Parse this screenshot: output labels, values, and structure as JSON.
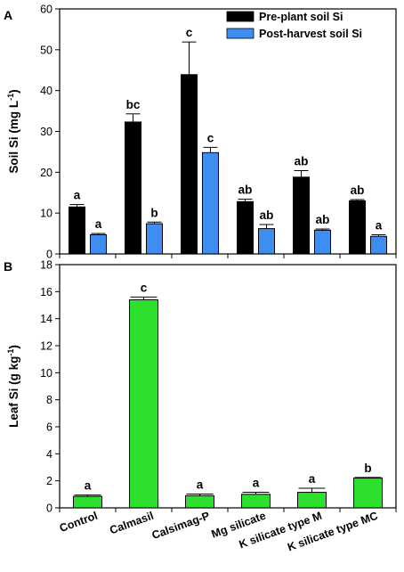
{
  "chart_data": [
    {
      "panel_label": "A",
      "type": "bar",
      "categories": [
        "Control",
        "Calmasil",
        "Calsimag-P",
        "Mg silicate",
        "K silicate type M",
        "K silicate type MC"
      ],
      "ylabel": "Soil Si (mg L",
      "ylabel_sup": "-1",
      "ylabel_close": ")",
      "ylim": [
        0,
        60
      ],
      "yticks": [
        0,
        10,
        20,
        30,
        40,
        50,
        60
      ],
      "legend_position": "top-right",
      "series": [
        {
          "name": "Pre-plant soil Si",
          "color": "#000000",
          "values": [
            11.5,
            32.3,
            43.9,
            12.8,
            18.8,
            13.0
          ],
          "errors": [
            0.6,
            2.0,
            8.0,
            0.6,
            1.6,
            0.3
          ],
          "letters": [
            "a",
            "bc",
            "c",
            "ab",
            "ab",
            "ab"
          ]
        },
        {
          "name": "Post-harvest soil Si",
          "color": "#3d8ef0",
          "values": [
            4.7,
            7.4,
            24.8,
            6.2,
            5.8,
            4.3
          ],
          "errors": [
            0.3,
            0.4,
            1.3,
            1.0,
            0.3,
            0.4
          ],
          "letters": [
            "a",
            "b",
            "c",
            "ab",
            "ab",
            "a"
          ]
        }
      ]
    },
    {
      "panel_label": "B",
      "type": "bar",
      "categories": [
        "Control",
        "Calmasil",
        "Calsimag-P",
        "Mg silicate",
        "K silicate type M",
        "K silicate type MC"
      ],
      "ylabel": "Leaf Si (g kg",
      "ylabel_sup": "-1",
      "ylabel_close": ")",
      "ylim": [
        0,
        18
      ],
      "yticks": [
        0,
        2,
        4,
        6,
        8,
        10,
        12,
        14,
        16,
        18
      ],
      "series": [
        {
          "color": "#2ee02e",
          "values": [
            0.85,
            15.4,
            0.9,
            1.0,
            1.15,
            2.2
          ],
          "errors": [
            0.1,
            0.2,
            0.12,
            0.15,
            0.3,
            0.05
          ],
          "letters": [
            "a",
            "c",
            "a",
            "a",
            "a",
            "b"
          ]
        }
      ]
    }
  ]
}
